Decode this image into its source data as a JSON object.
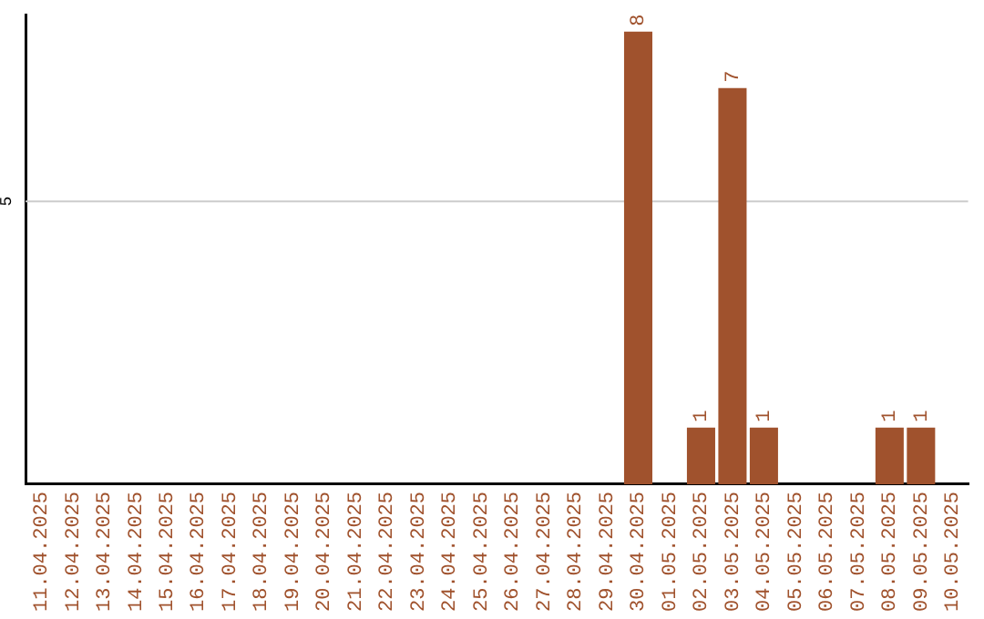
{
  "chart_data": {
    "type": "bar",
    "categories": [
      "11.04.2025",
      "12.04.2025",
      "13.04.2025",
      "14.04.2025",
      "15.04.2025",
      "16.04.2025",
      "17.04.2025",
      "18.04.2025",
      "19.04.2025",
      "20.04.2025",
      "21.04.2025",
      "22.04.2025",
      "23.04.2025",
      "24.04.2025",
      "25.04.2025",
      "26.04.2025",
      "27.04.2025",
      "28.04.2025",
      "29.04.2025",
      "30.04.2025",
      "01.05.2025",
      "02.05.2025",
      "03.05.2025",
      "04.05.2025",
      "05.05.2025",
      "06.05.2025",
      "07.05.2025",
      "08.05.2025",
      "09.05.2025",
      "10.05.2025"
    ],
    "values": [
      null,
      null,
      null,
      null,
      null,
      null,
      null,
      null,
      null,
      null,
      null,
      null,
      null,
      null,
      null,
      null,
      null,
      null,
      null,
      8,
      null,
      1,
      7,
      1,
      null,
      null,
      null,
      1,
      1,
      null
    ],
    "data_labels": true,
    "color": "#a0522d",
    "ylim": [
      0,
      8.3
    ],
    "ref_lines": [
      {
        "axis": "y",
        "value": 5,
        "label": "5",
        "color": "#cccccc"
      }
    ],
    "legend": false
  }
}
